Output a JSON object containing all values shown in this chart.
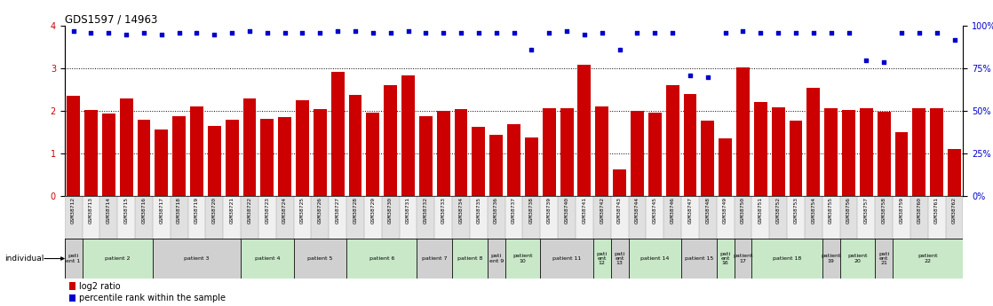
{
  "title": "GDS1597 / 14963",
  "samples": [
    "GSM38712",
    "GSM38713",
    "GSM38714",
    "GSM38715",
    "GSM38716",
    "GSM38717",
    "GSM38718",
    "GSM38719",
    "GSM38720",
    "GSM38721",
    "GSM38722",
    "GSM38723",
    "GSM38724",
    "GSM38725",
    "GSM38726",
    "GSM38727",
    "GSM38728",
    "GSM38729",
    "GSM38730",
    "GSM38731",
    "GSM38732",
    "GSM38733",
    "GSM38734",
    "GSM38735",
    "GSM38736",
    "GSM38737",
    "GSM38738",
    "GSM38739",
    "GSM38740",
    "GSM38741",
    "GSM38742",
    "GSM38743",
    "GSM38744",
    "GSM38745",
    "GSM38746",
    "GSM38747",
    "GSM38748",
    "GSM38749",
    "GSM38750",
    "GSM38751",
    "GSM38752",
    "GSM38753",
    "GSM38754",
    "GSM38755",
    "GSM38756",
    "GSM38757",
    "GSM38758",
    "GSM38759",
    "GSM38760",
    "GSM38761",
    "GSM38762"
  ],
  "log2_ratio": [
    2.35,
    2.02,
    1.93,
    2.3,
    1.8,
    1.57,
    1.87,
    2.1,
    1.65,
    1.8,
    2.3,
    1.82,
    1.85,
    2.26,
    2.05,
    2.93,
    2.38,
    1.96,
    2.6,
    2.83,
    1.87,
    2.0,
    2.05,
    1.62,
    1.43,
    1.68,
    1.37,
    2.07,
    2.07,
    3.08,
    2.1,
    0.62,
    2.0,
    1.95,
    2.6,
    2.4,
    1.78,
    1.35,
    3.03,
    2.2,
    2.08,
    1.78,
    2.55,
    2.07,
    2.03,
    2.07,
    1.98,
    1.5,
    2.07,
    2.07,
    1.1
  ],
  "percentile": [
    97,
    96,
    96,
    95,
    96,
    95,
    96,
    96,
    95,
    96,
    97,
    96,
    96,
    96,
    96,
    97,
    97,
    96,
    96,
    97,
    96,
    96,
    96,
    96,
    96,
    96,
    86,
    96,
    97,
    95,
    96,
    86,
    96,
    96,
    96,
    71,
    70,
    96,
    97,
    96,
    96,
    96,
    96,
    96,
    96,
    80,
    79,
    96,
    96,
    96,
    92
  ],
  "patients": [
    {
      "label": "pati\nent 1",
      "start": 0,
      "end": 0,
      "color": "#d0d0d0"
    },
    {
      "label": "patient 2",
      "start": 1,
      "end": 4,
      "color": "#c8e8c8"
    },
    {
      "label": "patient 3",
      "start": 5,
      "end": 9,
      "color": "#d0d0d0"
    },
    {
      "label": "patient 4",
      "start": 10,
      "end": 12,
      "color": "#c8e8c8"
    },
    {
      "label": "patient 5",
      "start": 13,
      "end": 15,
      "color": "#d0d0d0"
    },
    {
      "label": "patient 6",
      "start": 16,
      "end": 19,
      "color": "#c8e8c8"
    },
    {
      "label": "patient 7",
      "start": 20,
      "end": 21,
      "color": "#d0d0d0"
    },
    {
      "label": "patient 8",
      "start": 22,
      "end": 23,
      "color": "#c8e8c8"
    },
    {
      "label": "pati\nent 9",
      "start": 24,
      "end": 24,
      "color": "#d0d0d0"
    },
    {
      "label": "patient\n10",
      "start": 25,
      "end": 26,
      "color": "#c8e8c8"
    },
    {
      "label": "patient 11",
      "start": 27,
      "end": 29,
      "color": "#d0d0d0"
    },
    {
      "label": "pati\nent\n12",
      "start": 30,
      "end": 30,
      "color": "#c8e8c8"
    },
    {
      "label": "pati\nent\n13",
      "start": 31,
      "end": 31,
      "color": "#d0d0d0"
    },
    {
      "label": "patient 14",
      "start": 32,
      "end": 34,
      "color": "#c8e8c8"
    },
    {
      "label": "patient 15",
      "start": 35,
      "end": 36,
      "color": "#d0d0d0"
    },
    {
      "label": "pati\nent\n16",
      "start": 37,
      "end": 37,
      "color": "#c8e8c8"
    },
    {
      "label": "patient\n17",
      "start": 38,
      "end": 38,
      "color": "#d0d0d0"
    },
    {
      "label": "patient 18",
      "start": 39,
      "end": 42,
      "color": "#c8e8c8"
    },
    {
      "label": "patient\n19",
      "start": 43,
      "end": 43,
      "color": "#d0d0d0"
    },
    {
      "label": "patient\n20",
      "start": 44,
      "end": 45,
      "color": "#c8e8c8"
    },
    {
      "label": "pati\nent\n21",
      "start": 46,
      "end": 46,
      "color": "#d0d0d0"
    },
    {
      "label": "patient\n22",
      "start": 47,
      "end": 50,
      "color": "#c8e8c8"
    }
  ],
  "bar_color": "#cc0000",
  "dot_color": "#0000cc",
  "ylim_left": [
    0,
    4
  ],
  "ylim_right": [
    0,
    100
  ],
  "yticks_left": [
    0,
    1,
    2,
    3,
    4
  ],
  "yticks_right": [
    0,
    25,
    50,
    75,
    100
  ]
}
